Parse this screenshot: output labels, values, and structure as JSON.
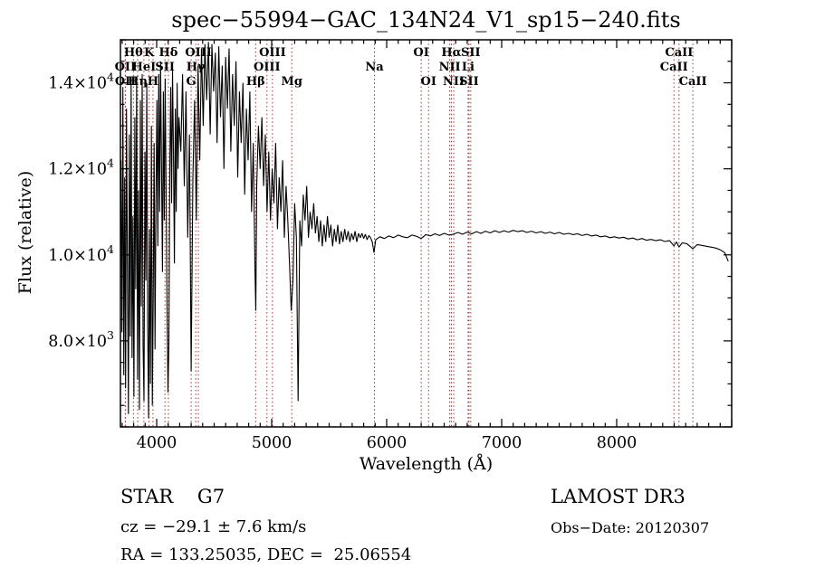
{
  "title": "spec−55994−GAC_134N24_V1_sp15−240.fits",
  "annotations": {
    "class_line": "STAR    G7",
    "cz_line": "cz = −29.1 ± 7.6 km/s",
    "radec_line": "RA = 133.25035, DEC =  25.06554",
    "survey": "LAMOST DR3",
    "obs_date": "Obs−Date: 20120307"
  },
  "chart_data": {
    "type": "line",
    "title": "spec−55994−GAC_134N24_V1_sp15−240.fits",
    "xlabel": "Wavelength (Å)",
    "ylabel": "Flux (relative)",
    "xlim": [
      3685,
      9000
    ],
    "ylim": [
      6000,
      15000
    ],
    "grid": false,
    "legend": "none",
    "x_major_ticks": [
      4000,
      5000,
      6000,
      7000,
      8000
    ],
    "x_minor_step": 100,
    "y_major_ticks": [
      8000,
      10000,
      12000,
      14000
    ],
    "y_minor_step": 500,
    "y_tick_labels": [
      {
        "value": 14000,
        "mantissa": "1.4×10",
        "exp": "4"
      },
      {
        "value": 12000,
        "mantissa": "1.2×10",
        "exp": "4"
      },
      {
        "value": 10000,
        "mantissa": "1.0×10",
        "exp": "4"
      },
      {
        "value": 8000,
        "mantissa": "8.0×10",
        "exp": "3"
      }
    ],
    "line_color": "#000000",
    "marker_line_color": "#993333",
    "spectral_lines": [
      {
        "label": "Hθ",
        "wavelength": 3798,
        "row": 1
      },
      {
        "label": "K",
        "wavelength": 3934,
        "row": 1
      },
      {
        "label": "Hδ",
        "wavelength": 4102,
        "row": 1
      },
      {
        "label": "OIII",
        "wavelength": 4363,
        "row": 1
      },
      {
        "label": "OIII",
        "wavelength": 5007,
        "row": 1
      },
      {
        "label": "OI",
        "wavelength": 6300,
        "row": 1
      },
      {
        "label": "Hα",
        "wavelength": 6563,
        "row": 1
      },
      {
        "label": "SII",
        "wavelength": 6731,
        "row": 1
      },
      {
        "label": "CaII",
        "wavelength": 8542,
        "row": 1
      },
      {
        "label": "OII",
        "wavelength": 3727,
        "row": 2
      },
      {
        "label": "HeI",
        "wavelength": 3889,
        "row": 2
      },
      {
        "label": "SII",
        "wavelength": 4072,
        "row": 2
      },
      {
        "label": "Hγ",
        "wavelength": 4340,
        "row": 2
      },
      {
        "label": "OIII",
        "wavelength": 4959,
        "row": 2
      },
      {
        "label": "Na",
        "wavelength": 5894,
        "row": 2
      },
      {
        "label": "NII",
        "wavelength": 6548,
        "row": 2
      },
      {
        "label": "Li",
        "wavelength": 6708,
        "row": 2
      },
      {
        "label": "CaII",
        "wavelength": 8498,
        "row": 2
      },
      {
        "label": "OII",
        "wavelength": 3729,
        "row": 3
      },
      {
        "label": "Hη",
        "wavelength": 3835,
        "row": 3
      },
      {
        "label": "H",
        "wavelength": 3968,
        "row": 3
      },
      {
        "label": "G",
        "wavelength": 4300,
        "row": 3
      },
      {
        "label": "Hβ",
        "wavelength": 4861,
        "row": 3
      },
      {
        "label": "Mg",
        "wavelength": 5175,
        "row": 3
      },
      {
        "label": "OI",
        "wavelength": 6364,
        "row": 3
      },
      {
        "label": "NII",
        "wavelength": 6583,
        "row": 3
      },
      {
        "label": "SII",
        "wavelength": 6716,
        "row": 3
      },
      {
        "label": "CaII",
        "wavelength": 8662,
        "row": 3
      }
    ],
    "series": [
      {
        "name": "flux",
        "points": [
          [
            3690,
            12200
          ],
          [
            3698,
            8200
          ],
          [
            3706,
            13900
          ],
          [
            3714,
            7200
          ],
          [
            3722,
            11800
          ],
          [
            3730,
            6900
          ],
          [
            3738,
            13400
          ],
          [
            3746,
            9800
          ],
          [
            3754,
            6300
          ],
          [
            3762,
            12800
          ],
          [
            3770,
            8100
          ],
          [
            3778,
            14100
          ],
          [
            3786,
            7600
          ],
          [
            3794,
            10900
          ],
          [
            3802,
            6700
          ],
          [
            3810,
            13200
          ],
          [
            3818,
            9200
          ],
          [
            3826,
            14000
          ],
          [
            3834,
            7100
          ],
          [
            3842,
            11500
          ],
          [
            3850,
            6400
          ],
          [
            3858,
            13600
          ],
          [
            3866,
            8800
          ],
          [
            3874,
            14200
          ],
          [
            3882,
            7900
          ],
          [
            3890,
            6600
          ],
          [
            3898,
            12400
          ],
          [
            3906,
            9400
          ],
          [
            3914,
            14000
          ],
          [
            3922,
            8300
          ],
          [
            3930,
            6200
          ],
          [
            3938,
            10600
          ],
          [
            3946,
            7000
          ],
          [
            3954,
            13000
          ],
          [
            3962,
            6500
          ],
          [
            3970,
            9000
          ],
          [
            3978,
            12600
          ],
          [
            3986,
            7800
          ],
          [
            3994,
            11200
          ],
          [
            4002,
            13600
          ],
          [
            4010,
            10200
          ],
          [
            4018,
            14200
          ],
          [
            4026,
            11000
          ],
          [
            4034,
            14500
          ],
          [
            4042,
            12200
          ],
          [
            4050,
            9600
          ],
          [
            4058,
            13800
          ],
          [
            4066,
            10800
          ],
          [
            4074,
            14100
          ],
          [
            4082,
            11600
          ],
          [
            4090,
            8900
          ],
          [
            4098,
            6800
          ],
          [
            4106,
            7900
          ],
          [
            4114,
            12000
          ],
          [
            4122,
            13900
          ],
          [
            4130,
            11200
          ],
          [
            4138,
            14300
          ],
          [
            4146,
            12500
          ],
          [
            4154,
            9800
          ],
          [
            4162,
            13400
          ],
          [
            4170,
            11000
          ],
          [
            4178,
            14000
          ],
          [
            4186,
            12000
          ],
          [
            4194,
            13200
          ],
          [
            4210,
            12400
          ],
          [
            4225,
            14200
          ],
          [
            4240,
            11600
          ],
          [
            4255,
            13800
          ],
          [
            4270,
            10400
          ],
          [
            4285,
            12800
          ],
          [
            4300,
            7300
          ],
          [
            4315,
            11800
          ],
          [
            4330,
            13600
          ],
          [
            4345,
            10800
          ],
          [
            4360,
            14400
          ],
          [
            4375,
            12200
          ],
          [
            4390,
            14800
          ],
          [
            4405,
            13000
          ],
          [
            4420,
            14900
          ],
          [
            4435,
            13600
          ],
          [
            4450,
            14950
          ],
          [
            4465,
            12800
          ],
          [
            4480,
            14900
          ],
          [
            4495,
            13800
          ],
          [
            4510,
            14700
          ],
          [
            4525,
            12600
          ],
          [
            4540,
            14850
          ],
          [
            4555,
            13200
          ],
          [
            4570,
            14400
          ],
          [
            4585,
            12000
          ],
          [
            4600,
            14600
          ],
          [
            4615,
            13400
          ],
          [
            4630,
            14800
          ],
          [
            4645,
            12400
          ],
          [
            4660,
            14200
          ],
          [
            4675,
            13000
          ],
          [
            4690,
            14500
          ],
          [
            4705,
            11800
          ],
          [
            4720,
            13800
          ],
          [
            4735,
            12600
          ],
          [
            4750,
            14000
          ],
          [
            4765,
            11400
          ],
          [
            4780,
            13400
          ],
          [
            4795,
            12200
          ],
          [
            4810,
            13800
          ],
          [
            4825,
            11000
          ],
          [
            4840,
            12600
          ],
          [
            4855,
            9600
          ],
          [
            4862,
            8700
          ],
          [
            4870,
            11600
          ],
          [
            4885,
            13000
          ],
          [
            4900,
            12000
          ],
          [
            4915,
            13200
          ],
          [
            4930,
            11600
          ],
          [
            4945,
            12800
          ],
          [
            4960,
            11000
          ],
          [
            4975,
            12400
          ],
          [
            4990,
            10800
          ],
          [
            5005,
            12000
          ],
          [
            5020,
            11200
          ],
          [
            5035,
            12600
          ],
          [
            5050,
            10600
          ],
          [
            5065,
            11800
          ],
          [
            5080,
            11000
          ],
          [
            5095,
            12200
          ],
          [
            5110,
            10400
          ],
          [
            5125,
            11600
          ],
          [
            5140,
            10800
          ],
          [
            5155,
            9800
          ],
          [
            5170,
            8700
          ],
          [
            5185,
            9400
          ],
          [
            5200,
            11200
          ],
          [
            5215,
            10400
          ],
          [
            5230,
            6600
          ],
          [
            5245,
            10800
          ],
          [
            5260,
            10200
          ],
          [
            5275,
            11400
          ],
          [
            5290,
            10800
          ],
          [
            5305,
            11600
          ],
          [
            5320,
            10400
          ],
          [
            5335,
            11000
          ],
          [
            5350,
            10600
          ],
          [
            5365,
            11200
          ],
          [
            5380,
            10500
          ],
          [
            5395,
            10900
          ],
          [
            5410,
            10300
          ],
          [
            5425,
            10800
          ],
          [
            5440,
            10200
          ],
          [
            5455,
            10700
          ],
          [
            5470,
            10300
          ],
          [
            5485,
            10900
          ],
          [
            5500,
            10400
          ],
          [
            5515,
            10700
          ],
          [
            5530,
            10200
          ],
          [
            5545,
            10600
          ],
          [
            5560,
            10300
          ],
          [
            5575,
            10700
          ],
          [
            5590,
            10250
          ],
          [
            5605,
            10550
          ],
          [
            5620,
            10300
          ],
          [
            5635,
            10600
          ],
          [
            5650,
            10350
          ],
          [
            5665,
            10550
          ],
          [
            5680,
            10300
          ],
          [
            5695,
            10500
          ],
          [
            5710,
            10350
          ],
          [
            5725,
            10550
          ],
          [
            5740,
            10300
          ],
          [
            5755,
            10500
          ],
          [
            5770,
            10400
          ],
          [
            5785,
            10500
          ],
          [
            5800,
            10380
          ],
          [
            5815,
            10480
          ],
          [
            5830,
            10350
          ],
          [
            5845,
            10450
          ],
          [
            5860,
            10400
          ],
          [
            5875,
            10300
          ],
          [
            5890,
            10050
          ],
          [
            5905,
            10350
          ],
          [
            5940,
            10420
          ],
          [
            5980,
            10380
          ],
          [
            6020,
            10440
          ],
          [
            6060,
            10400
          ],
          [
            6100,
            10460
          ],
          [
            6140,
            10420
          ],
          [
            6180,
            10400
          ],
          [
            6220,
            10460
          ],
          [
            6260,
            10430
          ],
          [
            6300,
            10380
          ],
          [
            6340,
            10470
          ],
          [
            6380,
            10440
          ],
          [
            6420,
            10490
          ],
          [
            6460,
            10450
          ],
          [
            6500,
            10500
          ],
          [
            6540,
            10460
          ],
          [
            6580,
            10480
          ],
          [
            6620,
            10520
          ],
          [
            6660,
            10480
          ],
          [
            6700,
            10530
          ],
          [
            6740,
            10490
          ],
          [
            6780,
            10540
          ],
          [
            6820,
            10500
          ],
          [
            6860,
            10550
          ],
          [
            6900,
            10510
          ],
          [
            6940,
            10560
          ],
          [
            6980,
            10520
          ],
          [
            7020,
            10560
          ],
          [
            7060,
            10530
          ],
          [
            7100,
            10570
          ],
          [
            7140,
            10540
          ],
          [
            7180,
            10560
          ],
          [
            7220,
            10520
          ],
          [
            7260,
            10550
          ],
          [
            7300,
            10510
          ],
          [
            7340,
            10540
          ],
          [
            7380,
            10500
          ],
          [
            7420,
            10530
          ],
          [
            7460,
            10490
          ],
          [
            7500,
            10520
          ],
          [
            7540,
            10480
          ],
          [
            7580,
            10500
          ],
          [
            7620,
            10470
          ],
          [
            7660,
            10490
          ],
          [
            7700,
            10450
          ],
          [
            7740,
            10480
          ],
          [
            7780,
            10440
          ],
          [
            7820,
            10460
          ],
          [
            7860,
            10420
          ],
          [
            7900,
            10440
          ],
          [
            7940,
            10400
          ],
          [
            7980,
            10420
          ],
          [
            8020,
            10390
          ],
          [
            8060,
            10410
          ],
          [
            8100,
            10370
          ],
          [
            8140,
            10390
          ],
          [
            8180,
            10350
          ],
          [
            8220,
            10380
          ],
          [
            8260,
            10340
          ],
          [
            8300,
            10360
          ],
          [
            8340,
            10330
          ],
          [
            8380,
            10350
          ],
          [
            8420,
            10310
          ],
          [
            8460,
            10330
          ],
          [
            8498,
            10210
          ],
          [
            8520,
            10300
          ],
          [
            8542,
            10180
          ],
          [
            8570,
            10280
          ],
          [
            8610,
            10260
          ],
          [
            8662,
            10140
          ],
          [
            8700,
            10240
          ],
          [
            8740,
            10220
          ],
          [
            8780,
            10200
          ],
          [
            8820,
            10180
          ],
          [
            8860,
            10160
          ],
          [
            8900,
            10120
          ],
          [
            8940,
            10050
          ],
          [
            8970,
            9850
          ]
        ]
      }
    ]
  }
}
